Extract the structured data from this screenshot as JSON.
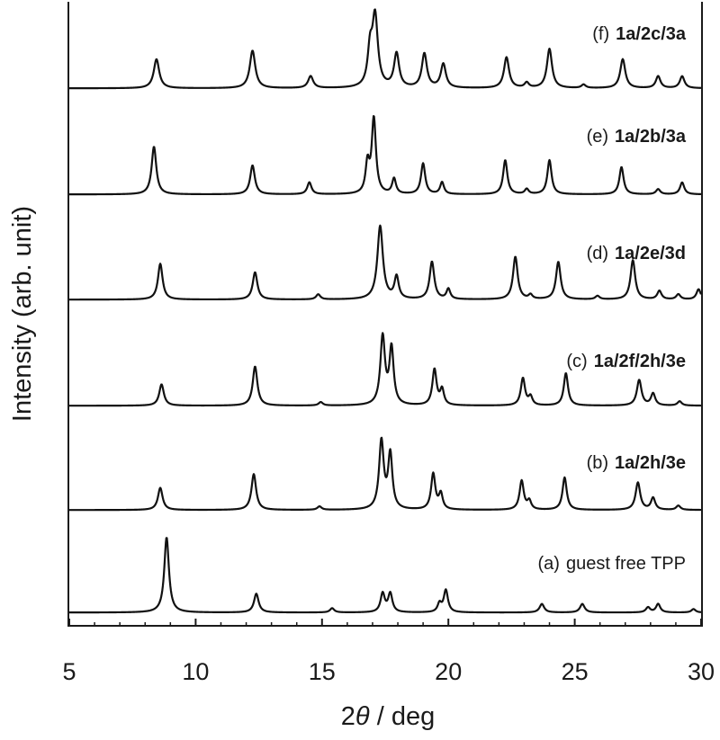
{
  "chart_data": {
    "type": "line",
    "xlabel_prefix": "2",
    "xlabel_symbol": "θ",
    "xlabel_suffix": " / deg",
    "ylabel": "Intensity (arb. unit)",
    "xlim": [
      5,
      30
    ],
    "x_ticks": [
      "5",
      "10",
      "15",
      "20",
      "25",
      "30"
    ],
    "grid": false,
    "baseline_offset": 0.008,
    "series": [
      {
        "prefix": "(a)",
        "sample": "",
        "plain": "guest free TPP",
        "peaks": [
          {
            "x": 8.85,
            "h": 0.88,
            "w": 0.11
          },
          {
            "x": 12.4,
            "h": 0.22,
            "w": 0.11
          },
          {
            "x": 15.4,
            "h": 0.05,
            "w": 0.1
          },
          {
            "x": 17.4,
            "h": 0.22,
            "w": 0.1
          },
          {
            "x": 17.7,
            "h": 0.22,
            "w": 0.1
          },
          {
            "x": 19.65,
            "h": 0.1,
            "w": 0.09
          },
          {
            "x": 19.9,
            "h": 0.26,
            "w": 0.1
          },
          {
            "x": 23.7,
            "h": 0.1,
            "w": 0.11
          },
          {
            "x": 25.3,
            "h": 0.1,
            "w": 0.11
          },
          {
            "x": 27.9,
            "h": 0.06,
            "w": 0.1
          },
          {
            "x": 28.3,
            "h": 0.1,
            "w": 0.1
          },
          {
            "x": 29.7,
            "h": 0.04,
            "w": 0.1
          }
        ]
      },
      {
        "prefix": "(b)",
        "sample": "1a/2h/3e",
        "plain": "",
        "peaks": [
          {
            "x": 8.6,
            "h": 0.26,
            "w": 0.11
          },
          {
            "x": 12.3,
            "h": 0.42,
            "w": 0.11
          },
          {
            "x": 14.9,
            "h": 0.04,
            "w": 0.1
          },
          {
            "x": 17.35,
            "h": 0.8,
            "w": 0.11
          },
          {
            "x": 17.7,
            "h": 0.64,
            "w": 0.1
          },
          {
            "x": 19.4,
            "h": 0.42,
            "w": 0.1
          },
          {
            "x": 19.7,
            "h": 0.18,
            "w": 0.09
          },
          {
            "x": 22.9,
            "h": 0.34,
            "w": 0.1
          },
          {
            "x": 23.2,
            "h": 0.1,
            "w": 0.09
          },
          {
            "x": 24.6,
            "h": 0.38,
            "w": 0.1
          },
          {
            "x": 27.5,
            "h": 0.32,
            "w": 0.11
          },
          {
            "x": 28.1,
            "h": 0.14,
            "w": 0.1
          },
          {
            "x": 29.1,
            "h": 0.05,
            "w": 0.1
          }
        ]
      },
      {
        "prefix": "(c)",
        "sample": "1a/2f/2h/3e",
        "plain": "",
        "peaks": [
          {
            "x": 8.65,
            "h": 0.25,
            "w": 0.11
          },
          {
            "x": 12.35,
            "h": 0.46,
            "w": 0.11
          },
          {
            "x": 14.95,
            "h": 0.04,
            "w": 0.1
          },
          {
            "x": 17.4,
            "h": 0.8,
            "w": 0.11
          },
          {
            "x": 17.75,
            "h": 0.66,
            "w": 0.1
          },
          {
            "x": 19.45,
            "h": 0.42,
            "w": 0.1
          },
          {
            "x": 19.75,
            "h": 0.18,
            "w": 0.09
          },
          {
            "x": 22.95,
            "h": 0.32,
            "w": 0.1
          },
          {
            "x": 23.25,
            "h": 0.1,
            "w": 0.09
          },
          {
            "x": 24.65,
            "h": 0.38,
            "w": 0.1
          },
          {
            "x": 27.55,
            "h": 0.3,
            "w": 0.11
          },
          {
            "x": 28.1,
            "h": 0.14,
            "w": 0.1
          },
          {
            "x": 29.15,
            "h": 0.05,
            "w": 0.1
          }
        ]
      },
      {
        "prefix": "(d)",
        "sample": "1a/2e/3d",
        "plain": "",
        "peaks": [
          {
            "x": 8.6,
            "h": 0.42,
            "w": 0.11
          },
          {
            "x": 12.35,
            "h": 0.32,
            "w": 0.11
          },
          {
            "x": 14.85,
            "h": 0.06,
            "w": 0.1
          },
          {
            "x": 17.3,
            "h": 0.86,
            "w": 0.13
          },
          {
            "x": 17.95,
            "h": 0.26,
            "w": 0.1
          },
          {
            "x": 19.35,
            "h": 0.44,
            "w": 0.11
          },
          {
            "x": 20.0,
            "h": 0.12,
            "w": 0.09
          },
          {
            "x": 22.65,
            "h": 0.5,
            "w": 0.11
          },
          {
            "x": 23.25,
            "h": 0.05,
            "w": 0.09
          },
          {
            "x": 24.35,
            "h": 0.44,
            "w": 0.11
          },
          {
            "x": 25.9,
            "h": 0.04,
            "w": 0.1
          },
          {
            "x": 27.3,
            "h": 0.46,
            "w": 0.11
          },
          {
            "x": 28.35,
            "h": 0.1,
            "w": 0.1
          },
          {
            "x": 29.1,
            "h": 0.06,
            "w": 0.1
          },
          {
            "x": 29.9,
            "h": 0.12,
            "w": 0.1
          }
        ]
      },
      {
        "prefix": "(e)",
        "sample": "1a/2b/3a",
        "plain": "",
        "peaks": [
          {
            "x": 8.35,
            "h": 0.56,
            "w": 0.11
          },
          {
            "x": 12.25,
            "h": 0.34,
            "w": 0.11
          },
          {
            "x": 14.5,
            "h": 0.14,
            "w": 0.1
          },
          {
            "x": 16.8,
            "h": 0.34,
            "w": 0.09
          },
          {
            "x": 17.05,
            "h": 0.88,
            "w": 0.1
          },
          {
            "x": 17.85,
            "h": 0.18,
            "w": 0.09
          },
          {
            "x": 19.0,
            "h": 0.36,
            "w": 0.1
          },
          {
            "x": 19.75,
            "h": 0.14,
            "w": 0.09
          },
          {
            "x": 22.25,
            "h": 0.4,
            "w": 0.1
          },
          {
            "x": 23.1,
            "h": 0.06,
            "w": 0.09
          },
          {
            "x": 24.0,
            "h": 0.4,
            "w": 0.1
          },
          {
            "x": 26.85,
            "h": 0.32,
            "w": 0.1
          },
          {
            "x": 28.3,
            "h": 0.06,
            "w": 0.1
          },
          {
            "x": 29.25,
            "h": 0.14,
            "w": 0.1
          }
        ]
      },
      {
        "prefix": "(f)",
        "sample": "1a/2c/3a",
        "plain": "",
        "peaks": [
          {
            "x": 8.45,
            "h": 0.34,
            "w": 0.13
          },
          {
            "x": 12.25,
            "h": 0.44,
            "w": 0.13
          },
          {
            "x": 14.55,
            "h": 0.14,
            "w": 0.12
          },
          {
            "x": 16.9,
            "h": 0.4,
            "w": 0.11
          },
          {
            "x": 17.1,
            "h": 0.82,
            "w": 0.13
          },
          {
            "x": 17.95,
            "h": 0.4,
            "w": 0.12
          },
          {
            "x": 19.05,
            "h": 0.4,
            "w": 0.12
          },
          {
            "x": 19.8,
            "h": 0.28,
            "w": 0.12
          },
          {
            "x": 22.3,
            "h": 0.36,
            "w": 0.12
          },
          {
            "x": 23.1,
            "h": 0.06,
            "w": 0.1
          },
          {
            "x": 24.0,
            "h": 0.46,
            "w": 0.12
          },
          {
            "x": 25.35,
            "h": 0.04,
            "w": 0.1
          },
          {
            "x": 26.9,
            "h": 0.34,
            "w": 0.12
          },
          {
            "x": 28.3,
            "h": 0.14,
            "w": 0.11
          },
          {
            "x": 29.25,
            "h": 0.14,
            "w": 0.11
          }
        ]
      }
    ]
  }
}
